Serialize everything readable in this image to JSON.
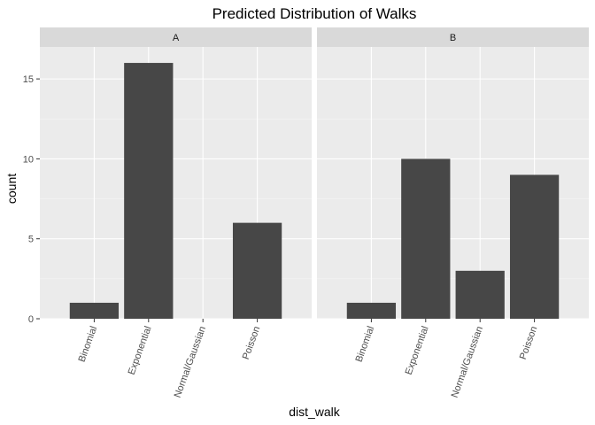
{
  "chart_data": {
    "type": "bar",
    "title": "Predicted Distribution of Walks",
    "xlabel": "dist_walk",
    "ylabel": "count",
    "ylim": [
      0,
      17
    ],
    "yticks": [
      0,
      5,
      10,
      15
    ],
    "grid": true,
    "categories": [
      "Binomial",
      "Exponential",
      "Normal/Gaussian",
      "Poisson"
    ],
    "facets": [
      {
        "label": "A",
        "values": [
          1,
          16,
          0,
          6
        ]
      },
      {
        "label": "B",
        "values": [
          1,
          10,
          3,
          9
        ]
      }
    ],
    "colors": {
      "panel_bg": "#ebebeb",
      "strip_bg": "#d9d9d9",
      "grid_major": "#ffffff",
      "grid_minor": "#f5f5f5",
      "bar": "#474747",
      "tick": "#333333"
    }
  }
}
